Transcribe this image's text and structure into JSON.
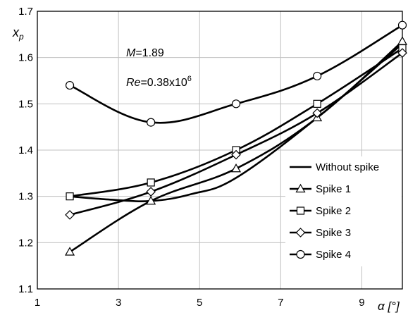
{
  "chart_data": {
    "type": "line",
    "ylabel_main": "x",
    "ylabel_sub": "p",
    "xlabel": "α [°]",
    "xlim": [
      1,
      10
    ],
    "ylim": [
      1.1,
      1.7
    ],
    "x_ticks": [
      1,
      3,
      5,
      7,
      9
    ],
    "y_ticks": [
      1.1,
      1.2,
      1.3,
      1.4,
      1.5,
      1.6,
      1.7
    ],
    "grid": true,
    "legend_position": "bottom-right",
    "annotations": {
      "mach_label": "M",
      "mach_value": "=1.89",
      "re_label": "Re",
      "re_value": "=0.38x10",
      "re_exp": "6"
    },
    "series": [
      {
        "name": "Without spike",
        "marker": "none",
        "x": [
          1.8,
          2.8,
          3.8,
          4.8,
          5.9,
          7.9,
          10.0
        ],
        "y": [
          1.3,
          1.293,
          1.29,
          1.305,
          1.34,
          1.47,
          1.63
        ]
      },
      {
        "name": "Spike 1",
        "marker": "triangle",
        "x": [
          1.8,
          3.8,
          5.9,
          7.9,
          10.0
        ],
        "y": [
          1.18,
          1.29,
          1.36,
          1.47,
          1.635
        ]
      },
      {
        "name": "Spike 2",
        "marker": "square",
        "x": [
          1.8,
          3.8,
          5.9,
          7.9,
          10.0
        ],
        "y": [
          1.3,
          1.33,
          1.4,
          1.5,
          1.62
        ]
      },
      {
        "name": "Spike 3",
        "marker": "diamond",
        "x": [
          1.8,
          3.8,
          5.9,
          7.9,
          10.0
        ],
        "y": [
          1.26,
          1.31,
          1.39,
          1.48,
          1.61
        ]
      },
      {
        "name": "Spike 4",
        "marker": "circle",
        "x": [
          1.8,
          3.8,
          5.9,
          7.9,
          10.0
        ],
        "y": [
          1.54,
          1.46,
          1.5,
          1.56,
          1.67
        ]
      }
    ]
  }
}
